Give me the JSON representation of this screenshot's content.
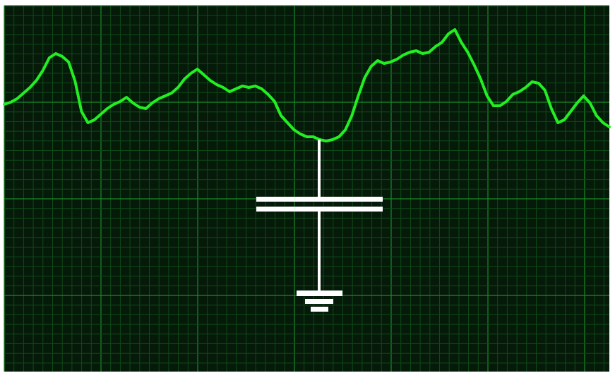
{
  "colors": {
    "background": "#061a0a",
    "grid_minor": "#0f4a17",
    "grid_major": "#1a8a2a",
    "trace": "#22ee22",
    "symbol": "#ffffff"
  },
  "trace": {
    "label": "green-waveform",
    "y": [
      10.2,
      10.5,
      11.0,
      11.8,
      12.6,
      13.6,
      15.0,
      16.8,
      17.4,
      17.0,
      16.2,
      13.5,
      9.2,
      7.6,
      8.0,
      8.8,
      9.6,
      10.2,
      10.6,
      11.2,
      10.4,
      9.8,
      9.6,
      10.4,
      11.0,
      11.4,
      11.8,
      12.6,
      13.8,
      14.6,
      15.2,
      14.4,
      13.6,
      13.0,
      12.6,
      12.0,
      12.4,
      12.8,
      12.6,
      12.8,
      12.4,
      11.6,
      10.6,
      8.6,
      7.6,
      6.6,
      6.0,
      5.6,
      5.6,
      5.2,
      5.0,
      5.2,
      5.6,
      6.6,
      8.6,
      11.4,
      14.0,
      15.6,
      16.4,
      16.0,
      16.2,
      16.6,
      17.2,
      17.6,
      17.8,
      17.4,
      17.6,
      18.4,
      19.0,
      20.2,
      20.8,
      19.0,
      17.6,
      15.8,
      13.8,
      11.4,
      10.0,
      10.0,
      10.6,
      11.6,
      12.0,
      12.6,
      13.4,
      13.2,
      12.2,
      9.6,
      7.6,
      8.0,
      9.2,
      10.4,
      11.4,
      10.4,
      8.6,
      7.6,
      7.0
    ]
  },
  "symbol": {
    "type": "capacitor-to-ground"
  }
}
